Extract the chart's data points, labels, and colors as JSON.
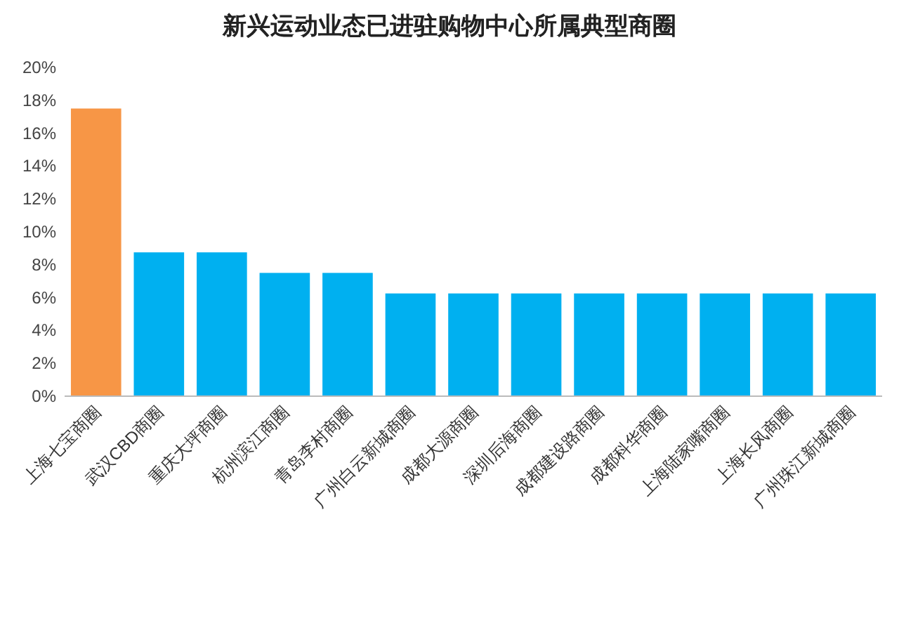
{
  "chart_data": {
    "type": "bar",
    "title": "新兴运动业态已进驻购物中心所属典型商圈",
    "categories": [
      "上海七宝商圈",
      "武汉CBD商圈",
      "重庆大坪商圈",
      "杭州滨江商圈",
      "青岛李村商圈",
      "广州白云新城商圈",
      "成都大源商圈",
      "深圳后海商圈",
      "成都建设路商圈",
      "成都科华商圈",
      "上海陆家嘴商圈",
      "上海长风商圈",
      "广州珠江新城商圈"
    ],
    "values": [
      17.5,
      8.75,
      8.75,
      7.5,
      7.5,
      6.25,
      6.25,
      6.25,
      6.25,
      6.25,
      6.25,
      6.25,
      6.25
    ],
    "colors": [
      "#f79646",
      "#00b0f0",
      "#00b0f0",
      "#00b0f0",
      "#00b0f0",
      "#00b0f0",
      "#00b0f0",
      "#00b0f0",
      "#00b0f0",
      "#00b0f0",
      "#00b0f0",
      "#00b0f0",
      "#00b0f0"
    ],
    "ylim": [
      0,
      20
    ],
    "yticks": [
      {
        "value": 0,
        "label": "0%"
      },
      {
        "value": 2,
        "label": "2%"
      },
      {
        "value": 4,
        "label": "4%"
      },
      {
        "value": 6,
        "label": "6%"
      },
      {
        "value": 8,
        "label": "8%"
      },
      {
        "value": 10,
        "label": "10%"
      },
      {
        "value": 12,
        "label": "12%"
      },
      {
        "value": 14,
        "label": "14%"
      },
      {
        "value": 16,
        "label": "16%"
      },
      {
        "value": 18,
        "label": "18%"
      },
      {
        "value": 20,
        "label": "20%"
      }
    ]
  }
}
